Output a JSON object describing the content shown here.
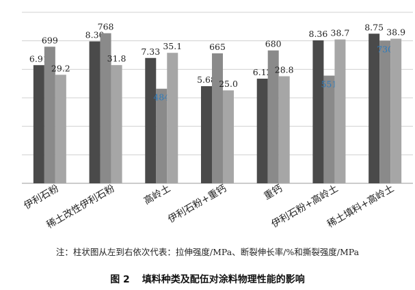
{
  "chart_data": {
    "type": "bar",
    "categories": [
      "伊利石粉",
      "稀土改性伊利石粉",
      "高岭土",
      "伊利石粉+重钙",
      "重钙",
      "伊利石粉+高岭土",
      "稀土填料+高岭土"
    ],
    "series": [
      {
        "values": [
          6.91,
          8.3,
          7.33,
          5.68,
          6.12,
          8.36,
          8.75
        ],
        "labels": [
          "6.91",
          "8.30",
          "7.33",
          "5.68",
          "6.12",
          "8.36",
          "8.75"
        ],
        "color": "#4a4a4a"
      },
      {
        "values": [
          699,
          768,
          484,
          665,
          680,
          551,
          730
        ],
        "labels": [
          "699",
          "768",
          "484",
          "665",
          "680",
          "551",
          "730"
        ],
        "color": "#8a8a8a"
      },
      {
        "values": [
          29.2,
          31.8,
          35.1,
          25.0,
          28.8,
          38.7,
          38.9
        ],
        "labels": [
          "29.2",
          "31.8",
          "35.1",
          "25.0",
          "28.8",
          "38.7",
          "38.9"
        ],
        "color": "#a6a6a6"
      }
    ],
    "series_scales": [
      10,
      875,
      46
    ],
    "highlight_labels": [
      {
        "series": 1,
        "index": 2
      },
      {
        "series": 1,
        "index": 5
      },
      {
        "series": 1,
        "index": 6
      }
    ],
    "highlight_color": "#2a7bbf",
    "grid": true
  },
  "note": "注：柱状图从左到右依次代表：拉伸强度/MPa、断裂伸长率/%和撕裂强度/MPa",
  "caption": {
    "number": "图 2",
    "text": "填料种类及配伍对涂料物理性能的影响"
  }
}
